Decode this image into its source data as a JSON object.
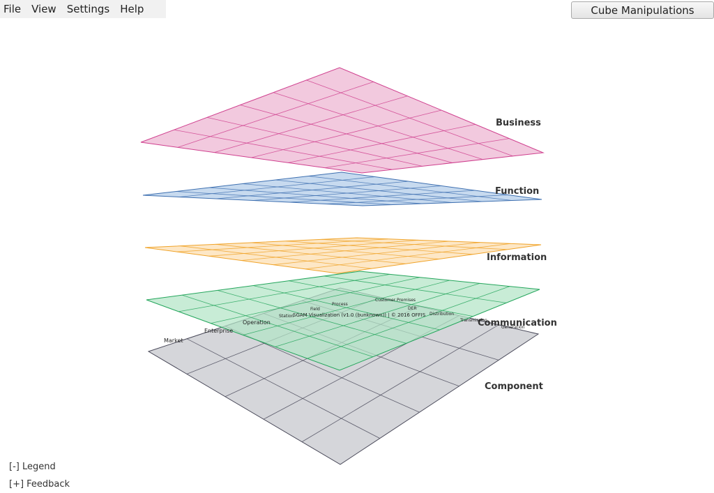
{
  "menu": {
    "items": [
      "File",
      "View",
      "Settings",
      "Help"
    ]
  },
  "toolbar": {
    "cube_button": "Cube Manipulations"
  },
  "planes": {
    "business": {
      "label": "Business",
      "fill": "#f1c6dc",
      "stroke": "#cf3f8e"
    },
    "function": {
      "label": "Function",
      "fill": "#c4d8ee",
      "stroke": "#3d6fb0"
    },
    "information": {
      "label": "Information",
      "fill": "#fde4c0",
      "stroke": "#f0a328"
    },
    "communication": {
      "label": "Communication",
      "fill": "#b3e4c6",
      "stroke": "#23a55b"
    },
    "component": {
      "label": "Component",
      "fill": "#d5d6da",
      "stroke": "#4a4a5a"
    }
  },
  "axes": {
    "zones": [
      "Market",
      "Enterprise",
      "Operation",
      "Station",
      "Field",
      "Process"
    ],
    "domains": [
      "Customer Premises",
      "DER",
      "Distribution",
      "Transmission",
      "Generation"
    ]
  },
  "credit": "SGAM Visualization (v1.0 (bunknown)) | © 2016 OFFIS",
  "footer": {
    "legend": "[-] Legend",
    "feedback": "[+] Feedback"
  }
}
